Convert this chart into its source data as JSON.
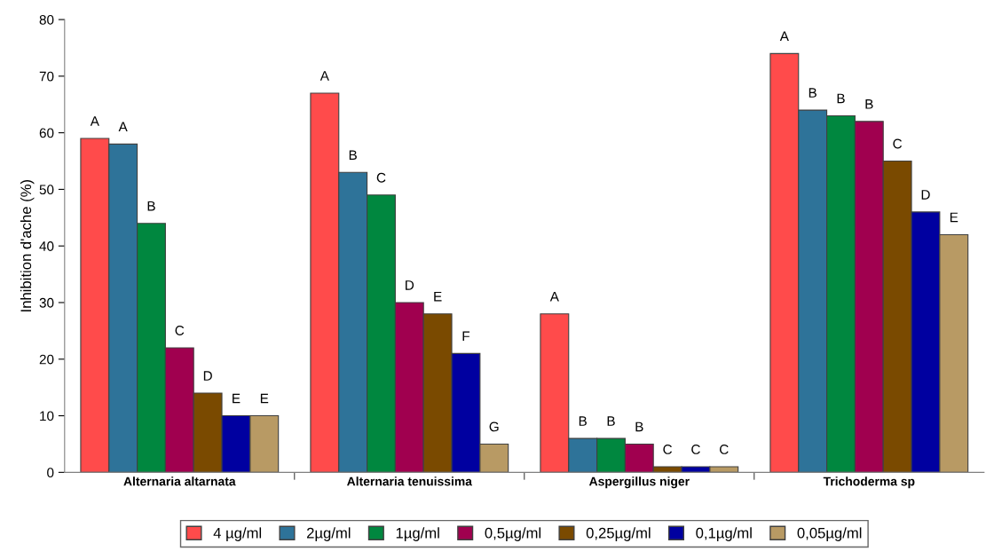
{
  "chart_data": {
    "type": "bar",
    "ylabel": "Inhibition d'ache (%)",
    "categories": [
      "Alternaria altarnata",
      "Alternaria tenuissima",
      "Aspergillus niger",
      "Trichoderma sp"
    ],
    "series": [
      {
        "name": "4 µg/ml",
        "color": "#ff4b4b",
        "values": [
          59,
          67,
          28,
          74
        ],
        "value_labels": [
          "A",
          "A",
          "A",
          "A"
        ]
      },
      {
        "name": "2µg/ml",
        "color": "#2e7399",
        "values": [
          58,
          53,
          6,
          64
        ],
        "value_labels": [
          "A",
          "B",
          "B",
          "B"
        ]
      },
      {
        "name": "1µg/ml",
        "color": "#00873f",
        "values": [
          44,
          49,
          6,
          63
        ],
        "value_labels": [
          "B",
          "C",
          "B",
          "B"
        ]
      },
      {
        "name": "0,5µg/ml",
        "color": "#a0004f",
        "values": [
          22,
          30,
          5,
          62
        ],
        "value_labels": [
          "C",
          "D",
          "B",
          "B"
        ]
      },
      {
        "name": "0,25µg/ml",
        "color": "#7a4a00",
        "values": [
          14,
          28,
          1,
          55
        ],
        "value_labels": [
          "D",
          "E",
          "C",
          "C"
        ]
      },
      {
        "name": "0,1µg/ml",
        "color": "#0000a0",
        "values": [
          10,
          21,
          1,
          46
        ],
        "value_labels": [
          "E",
          "F",
          "C",
          "D"
        ]
      },
      {
        "name": "0,05µg/ml",
        "color": "#b89a64",
        "values": [
          10,
          5,
          1,
          42
        ],
        "value_labels": [
          "E",
          "G",
          "C",
          "E"
        ]
      }
    ],
    "ylim": [
      0,
      80
    ],
    "yticks": [
      0,
      10,
      20,
      30,
      40,
      50,
      60,
      70,
      80
    ],
    "grid": false,
    "legend": "bottom"
  }
}
